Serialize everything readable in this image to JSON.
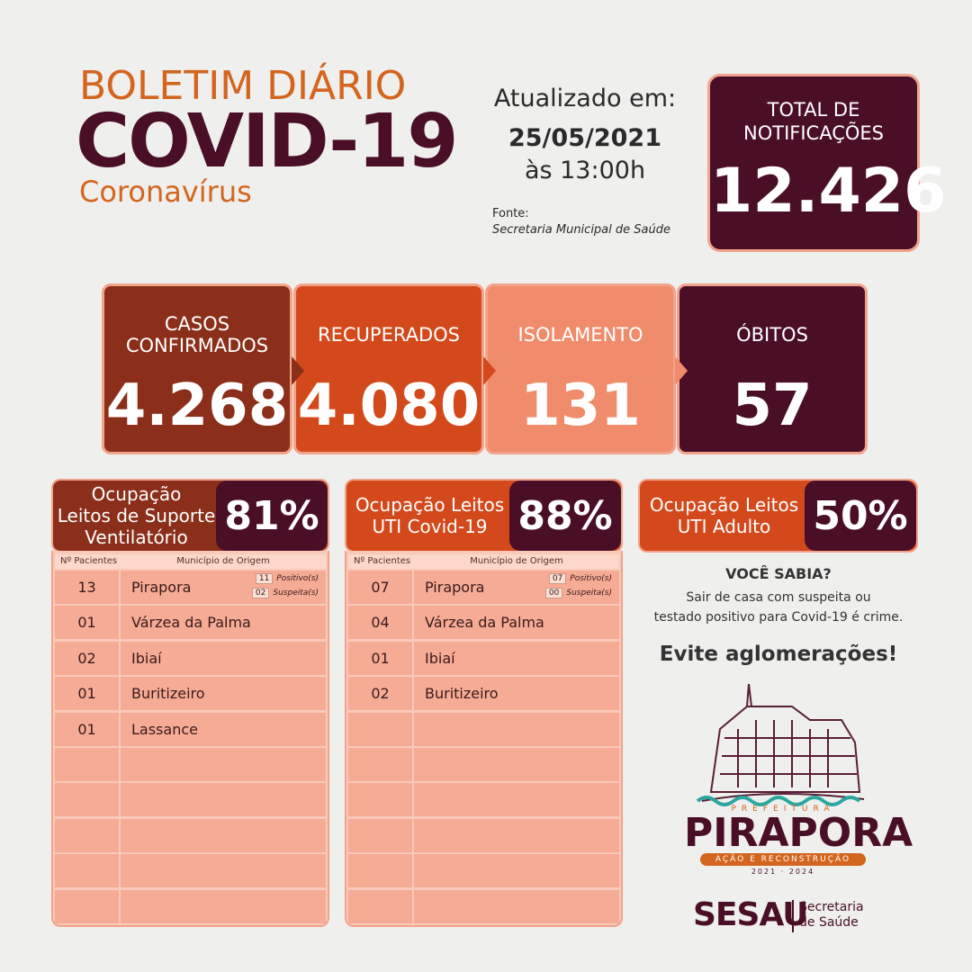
{
  "header": {
    "title": "BOLETIM DIÁRIO",
    "headline": "COVID-19",
    "subtitle": "Coronavírus"
  },
  "update": {
    "label": "Atualizado em:",
    "date": "25/05/2021",
    "time": "às 13:00h",
    "source_label": "Fonte:",
    "source": "Secretaria Municipal de Saúde"
  },
  "total": {
    "label": "TOTAL DE\nNOTIFICAÇÕES",
    "value": "12.426"
  },
  "stats": [
    {
      "label": "CASOS\nCONFIRMADOS",
      "value": "4.268"
    },
    {
      "label": "RECUPERADOS",
      "value": "4.080"
    },
    {
      "label": "ISOLAMENTO",
      "value": "131"
    },
    {
      "label": "ÓBITOS",
      "value": "57"
    }
  ],
  "occupancy": [
    {
      "label": "Ocupação\nLeitos de Suporte\nVentilatório",
      "value": "81%"
    },
    {
      "label": "Ocupação Leitos\nUTI Covid-19",
      "value": "88%"
    },
    {
      "label": "Ocupação Leitos\nUTI Adulto",
      "value": "50%"
    }
  ],
  "tables": [
    {
      "headers": [
        "Nº Pacientes",
        "Município de Origem"
      ],
      "rows": [
        [
          "13",
          "Pirapora"
        ],
        [
          "01",
          "Várzea da Palma"
        ],
        [
          "02",
          "Ibiaí"
        ],
        [
          "01",
          "Buritizeiro"
        ],
        [
          "01",
          "Lassance"
        ]
      ],
      "detail": [
        {
          "count": "11",
          "label": "Positivo(s)"
        },
        {
          "count": "02",
          "label": "Suspeita(s)"
        }
      ]
    },
    {
      "headers": [
        "Nº Pacientes",
        "Município de Origem"
      ],
      "rows": [
        [
          "07",
          "Pirapora"
        ],
        [
          "04",
          "Várzea da Palma"
        ],
        [
          "01",
          "Ibiaí"
        ],
        [
          "02",
          "Buritizeiro"
        ]
      ],
      "detail": [
        {
          "count": "07",
          "label": "Positivo(s)"
        },
        {
          "count": "00",
          "label": "Suspeita(s)"
        }
      ]
    }
  ],
  "notice": {
    "title": "VOCÊ SABIA?",
    "text": "Sair de casa com suspeita ou\ntestado positivo para Covid-19 é crime.",
    "slogan": "Evite aglomerações!"
  },
  "logo": {
    "prefeitura": "PREFEITURA",
    "name": "PIRAPORA",
    "motto": "AÇÃO E RECONSTRUÇÃO",
    "years": "2021 · 2024"
  },
  "sesau": {
    "name": "SESAU",
    "text": "Secretaria\nde Saúde"
  }
}
